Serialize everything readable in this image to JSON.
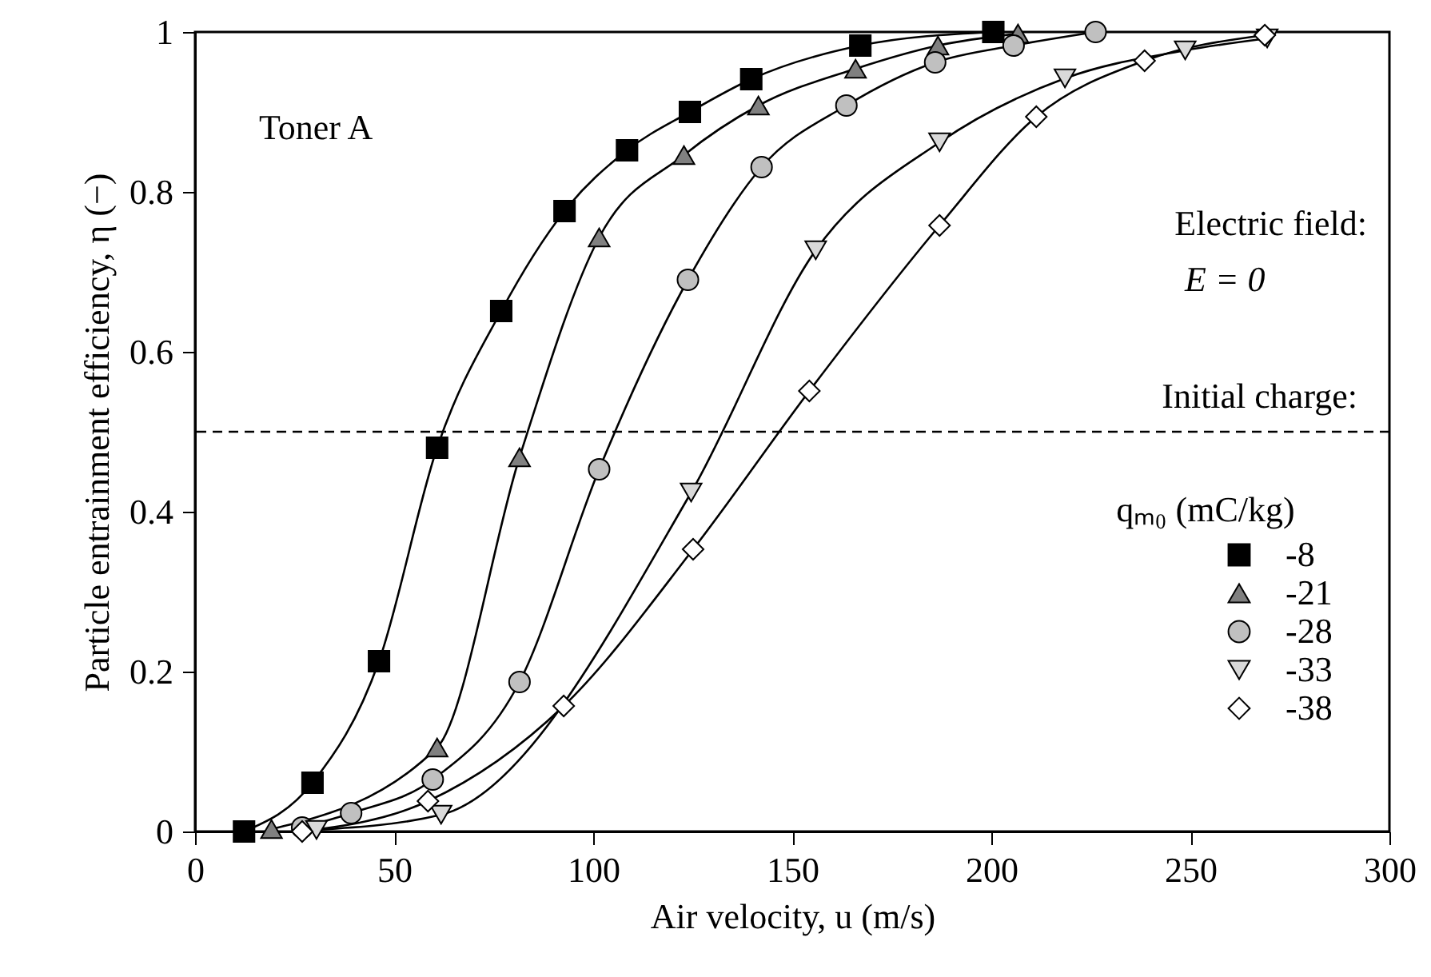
{
  "chart_data": {
    "type": "line",
    "xlabel": "Air velocity, u (m/s)",
    "ylabel": "Particle entrainment efficiency, η (−)",
    "legend_title": "qₘ₀ (mC/kg)",
    "legend": "bottom right",
    "grid": false,
    "line_style": "solid",
    "xlim": [
      0,
      300
    ],
    "xticks": [
      0,
      50,
      100,
      150,
      200,
      250,
      300
    ],
    "ylim": [
      0,
      1
    ],
    "yticks": [
      0,
      0.2,
      0.4,
      0.6,
      0.8,
      1
    ],
    "annotations": [
      "Toner A",
      "Electric field:",
      "E = 0",
      "Initial charge:"
    ],
    "ref_lines": [
      {
        "axis": "y",
        "value": 0.5,
        "line_style": "dashed",
        "color": "#000000"
      }
    ],
    "series": [
      {
        "name": "-8",
        "color": "#000000",
        "marker": "square",
        "x": [
          12.3,
          29.5,
          46.2,
          60.8,
          76.9,
          92.8,
          108.5,
          124.3,
          139.7,
          167.1,
          200.5
        ],
        "values": [
          0,
          0.061,
          0.213,
          0.48,
          0.651,
          0.776,
          0.852,
          0.9,
          0.941,
          0.983,
          1.0
        ]
      },
      {
        "name": "-21",
        "color": "#808080",
        "marker": "triangle",
        "x": [
          19.2,
          60.8,
          81.5,
          101.5,
          122.8,
          141.5,
          165.9,
          186.6,
          206.7
        ],
        "values": [
          0.003,
          0.105,
          0.468,
          0.743,
          0.846,
          0.908,
          0.954,
          0.983,
          0.998
        ]
      },
      {
        "name": "-28",
        "color": "#c0c0c0",
        "marker": "circle",
        "x": [
          26.9,
          39.2,
          59.7,
          81.5,
          101.5,
          123.8,
          142.3,
          163.6,
          185.9,
          205.6,
          226.2
        ],
        "values": [
          0.005,
          0.023,
          0.065,
          0.187,
          0.453,
          0.69,
          0.831,
          0.908,
          0.962,
          0.983,
          1.0
        ]
      },
      {
        "name": "-33",
        "color": "#d9d9d9",
        "marker": "triangle-down",
        "x": [
          30.5,
          61.8,
          124.6,
          155.9,
          187,
          218.5,
          248.7,
          269.3
        ],
        "values": [
          0.002,
          0.021,
          0.424,
          0.727,
          0.862,
          0.942,
          0.977,
          0.992
        ]
      },
      {
        "name": "-38",
        "color": "#ffffff",
        "marker": "diamond",
        "x": [
          26.9,
          58.5,
          92.6,
          125.1,
          154.3,
          187,
          211.3,
          238.5,
          268.7
        ],
        "values": [
          0,
          0.038,
          0.157,
          0.353,
          0.551,
          0.758,
          0.894,
          0.964,
          0.996
        ]
      }
    ]
  }
}
